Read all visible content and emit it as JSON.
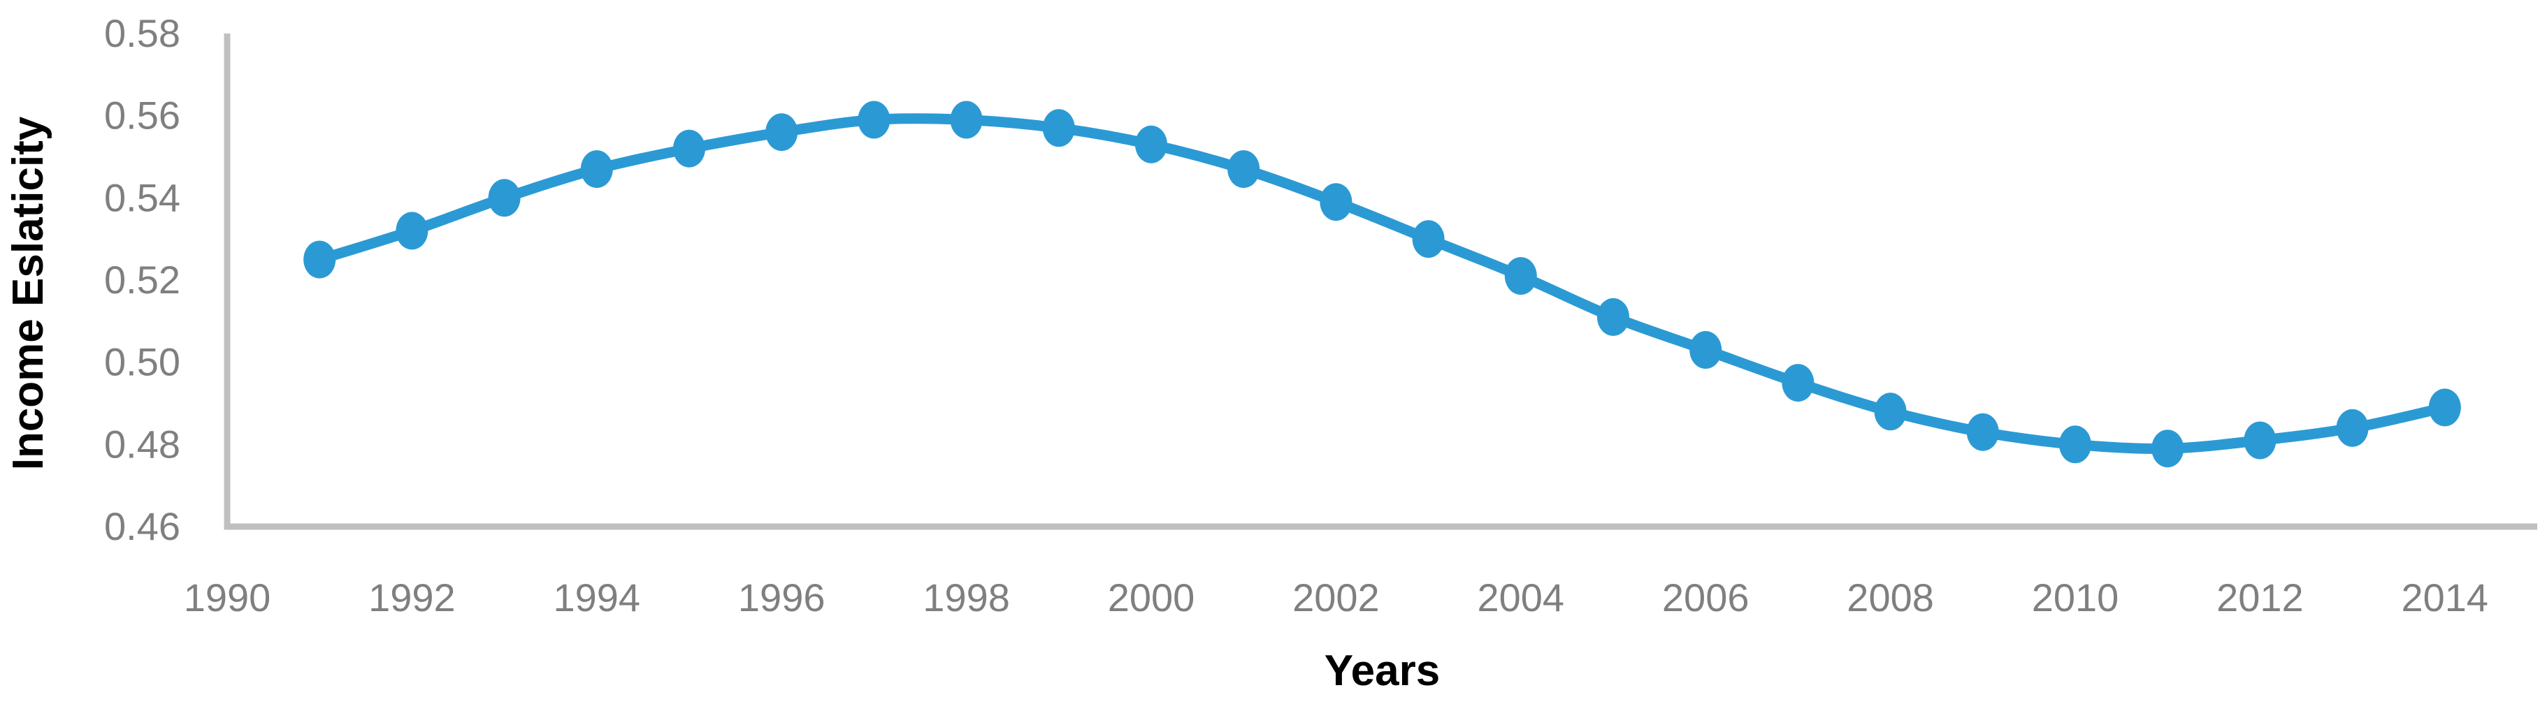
{
  "page": {
    "background": "#FFFFFF"
  },
  "chart_data": {
    "type": "line",
    "title": "",
    "xlabel": "Years",
    "ylabel": "Income Eslaticity",
    "x": [
      1991,
      1992,
      1993,
      1994,
      1995,
      1996,
      1997,
      1998,
      1999,
      2000,
      2001,
      2002,
      2003,
      2004,
      2005,
      2006,
      2007,
      2008,
      2009,
      2010,
      2011,
      2012,
      2013,
      2014
    ],
    "series": [
      {
        "name": "Income Eslaticity",
        "values": [
          0.525,
          0.532,
          0.54,
          0.547,
          0.552,
          0.556,
          0.559,
          0.559,
          0.557,
          0.553,
          0.547,
          0.539,
          0.53,
          0.521,
          0.511,
          0.503,
          0.495,
          0.488,
          0.483,
          0.48,
          0.479,
          0.481,
          0.484,
          0.489
        ]
      }
    ],
    "x_ticks": [
      1990,
      1992,
      1994,
      1996,
      1998,
      2000,
      2002,
      2004,
      2006,
      2008,
      2010,
      2012,
      2014
    ],
    "y_ticks": [
      0.46,
      0.48,
      0.5,
      0.52,
      0.54,
      0.56,
      0.58
    ],
    "xlim": [
      1990,
      2015
    ],
    "ylim": [
      0.46,
      0.58
    ],
    "grid": false,
    "legend": "none",
    "smooth_line": true,
    "marker": "circle",
    "colors": {
      "series": "#2B9AD4",
      "tick_labels": "#7F7F7F",
      "axis_line": "#BFBFBF",
      "axis_titles": "#000000"
    }
  }
}
